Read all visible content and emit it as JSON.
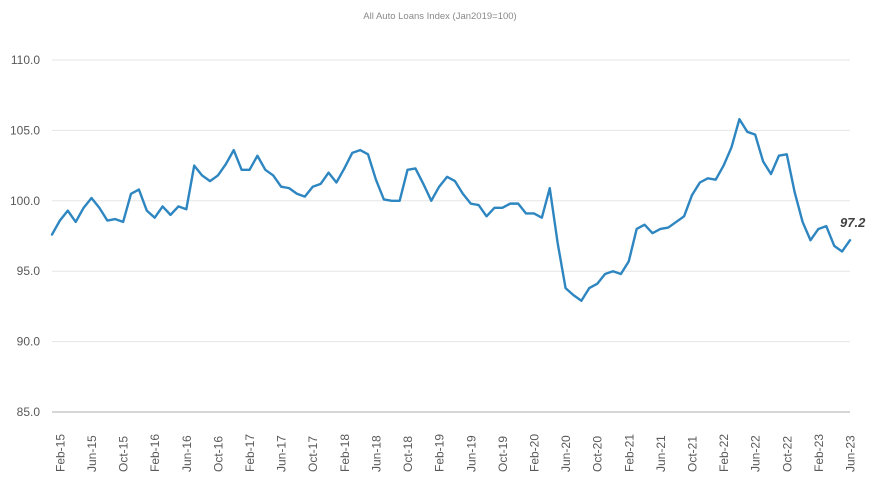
{
  "chart_data": {
    "type": "line",
    "title": "All Auto Loans Index (Jan2019=100)",
    "xlabel": "",
    "ylabel": "",
    "ylim": [
      85.0,
      110.0
    ],
    "yticks": [
      "85.0",
      "90.0",
      "95.0",
      "100.0",
      "105.0",
      "110.0"
    ],
    "grid": true,
    "legend": "none",
    "xticks": [
      {
        "label": "Feb-15",
        "month_index": 1
      },
      {
        "label": "Jun-15",
        "month_index": 5
      },
      {
        "label": "Oct-15",
        "month_index": 9
      },
      {
        "label": "Feb-16",
        "month_index": 13
      },
      {
        "label": "Jun-16",
        "month_index": 17
      },
      {
        "label": "Oct-16",
        "month_index": 21
      },
      {
        "label": "Feb-17",
        "month_index": 25
      },
      {
        "label": "Jun-17",
        "month_index": 29
      },
      {
        "label": "Oct-17",
        "month_index": 33
      },
      {
        "label": "Feb-18",
        "month_index": 37
      },
      {
        "label": "Jun-18",
        "month_index": 41
      },
      {
        "label": "Oct-18",
        "month_index": 45
      },
      {
        "label": "Feb-19",
        "month_index": 49
      },
      {
        "label": "Jun-19",
        "month_index": 53
      },
      {
        "label": "Oct-19",
        "month_index": 57
      },
      {
        "label": "Feb-20",
        "month_index": 61
      },
      {
        "label": "Jun-20",
        "month_index": 65
      },
      {
        "label": "Oct-20",
        "month_index": 69
      },
      {
        "label": "Feb-21",
        "month_index": 73
      },
      {
        "label": "Jun-21",
        "month_index": 77
      },
      {
        "label": "Oct-21",
        "month_index": 81
      },
      {
        "label": "Feb-22",
        "month_index": 85
      },
      {
        "label": "Jun-22",
        "month_index": 89
      },
      {
        "label": "Oct-22",
        "month_index": 93
      },
      {
        "label": "Feb-23",
        "month_index": 97
      },
      {
        "label": "Jun-23",
        "month_index": 101
      }
    ],
    "series": [
      {
        "color": "#2E86C1",
        "x_start": "Jan-15",
        "x_end": "Jun-23",
        "values": [
          97.6,
          98.6,
          99.3,
          98.5,
          99.5,
          100.2,
          99.5,
          98.6,
          98.7,
          98.5,
          100.5,
          100.8,
          99.3,
          98.8,
          99.6,
          99.0,
          99.6,
          99.4,
          102.5,
          101.8,
          101.4,
          101.8,
          102.6,
          103.6,
          102.2,
          102.2,
          103.2,
          102.2,
          101.8,
          101.0,
          100.9,
          100.5,
          100.3,
          101.0,
          101.2,
          102.0,
          101.3,
          102.3,
          103.4,
          103.6,
          103.3,
          101.5,
          100.1,
          100.0,
          100.0,
          102.2,
          102.3,
          101.2,
          100.0,
          101.0,
          101.7,
          101.4,
          100.5,
          99.8,
          99.7,
          98.9,
          99.5,
          99.5,
          99.8,
          99.8,
          99.1,
          99.1,
          98.8,
          100.9,
          97.0,
          93.8,
          93.3,
          92.9,
          93.8,
          94.1,
          94.8,
          95.0,
          94.8,
          95.7,
          98.0,
          98.3,
          97.7,
          98.0,
          98.1,
          98.5,
          98.9,
          100.4,
          101.3,
          101.6,
          101.5,
          102.5,
          103.8,
          105.8,
          104.9,
          104.7,
          102.8,
          101.9,
          103.2,
          103.3,
          100.6,
          98.5,
          97.2,
          98.0,
          98.2,
          96.8,
          96.4,
          97.2
        ]
      }
    ],
    "annotations": [
      {
        "text": "97.2",
        "target": "last-point"
      }
    ]
  }
}
